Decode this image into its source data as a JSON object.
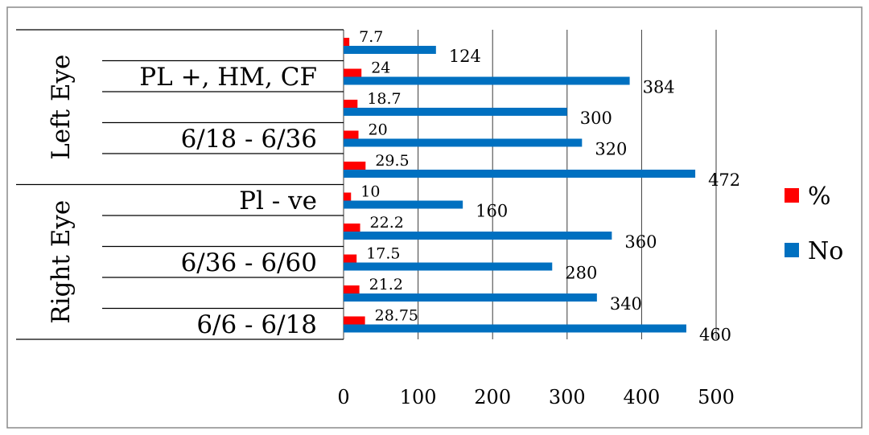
{
  "chart_data": {
    "type": "bar",
    "orientation": "horizontal",
    "grid": true,
    "legend_position": "right",
    "xlim": [
      0,
      500
    ],
    "x_ticks": [
      "0",
      "100",
      "200",
      "300",
      "400",
      "500"
    ],
    "groups": [
      {
        "label": "Left Eye"
      },
      {
        "label": "Right Eye"
      }
    ],
    "category_labels": [
      "PL +, HM, CF",
      "6/18 - 6/36",
      "Pl - ve",
      "6/36 - 6/60",
      "6/6 - 6/18"
    ],
    "rows": [
      {
        "group": "Left Eye",
        "category": "",
        "pct": 7.7,
        "no": 124,
        "pct_label": "7.7",
        "no_label": "124"
      },
      {
        "group": "Left Eye",
        "category": "PL +, HM, CF",
        "pct": 24,
        "no": 384,
        "pct_label": "24",
        "no_label": "384"
      },
      {
        "group": "Left Eye",
        "category": "",
        "pct": 18.7,
        "no": 300,
        "pct_label": "18.7",
        "no_label": "300"
      },
      {
        "group": "Left Eye",
        "category": "6/18 - 6/36",
        "pct": 20,
        "no": 320,
        "pct_label": "20",
        "no_label": "320"
      },
      {
        "group": "Left Eye",
        "category": "",
        "pct": 29.5,
        "no": 472,
        "pct_label": "29.5",
        "no_label": "472"
      },
      {
        "group": "Right Eye",
        "category": "Pl - ve",
        "pct": 10,
        "no": 160,
        "pct_label": "10",
        "no_label": "160"
      },
      {
        "group": "Right Eye",
        "category": "",
        "pct": 22.2,
        "no": 360,
        "pct_label": "22.2",
        "no_label": "360"
      },
      {
        "group": "Right Eye",
        "category": "6/36 - 6/60",
        "pct": 17.5,
        "no": 280,
        "pct_label": "17.5",
        "no_label": "280"
      },
      {
        "group": "Right Eye",
        "category": "",
        "pct": 21.2,
        "no": 340,
        "pct_label": "21.2",
        "no_label": "340"
      },
      {
        "group": "Right Eye",
        "category": "6/6 - 6/18",
        "pct": 28.75,
        "no": 460,
        "pct_label": "28.75",
        "no_label": "460"
      }
    ],
    "series": [
      {
        "name": "%",
        "key": "pct",
        "color": "#ff0000"
      },
      {
        "name": "No",
        "key": "no",
        "color": "#0070c0"
      }
    ],
    "legend": [
      {
        "name": "%",
        "color": "#ff0000"
      },
      {
        "name": "No",
        "color": "#0070c0"
      }
    ]
  }
}
